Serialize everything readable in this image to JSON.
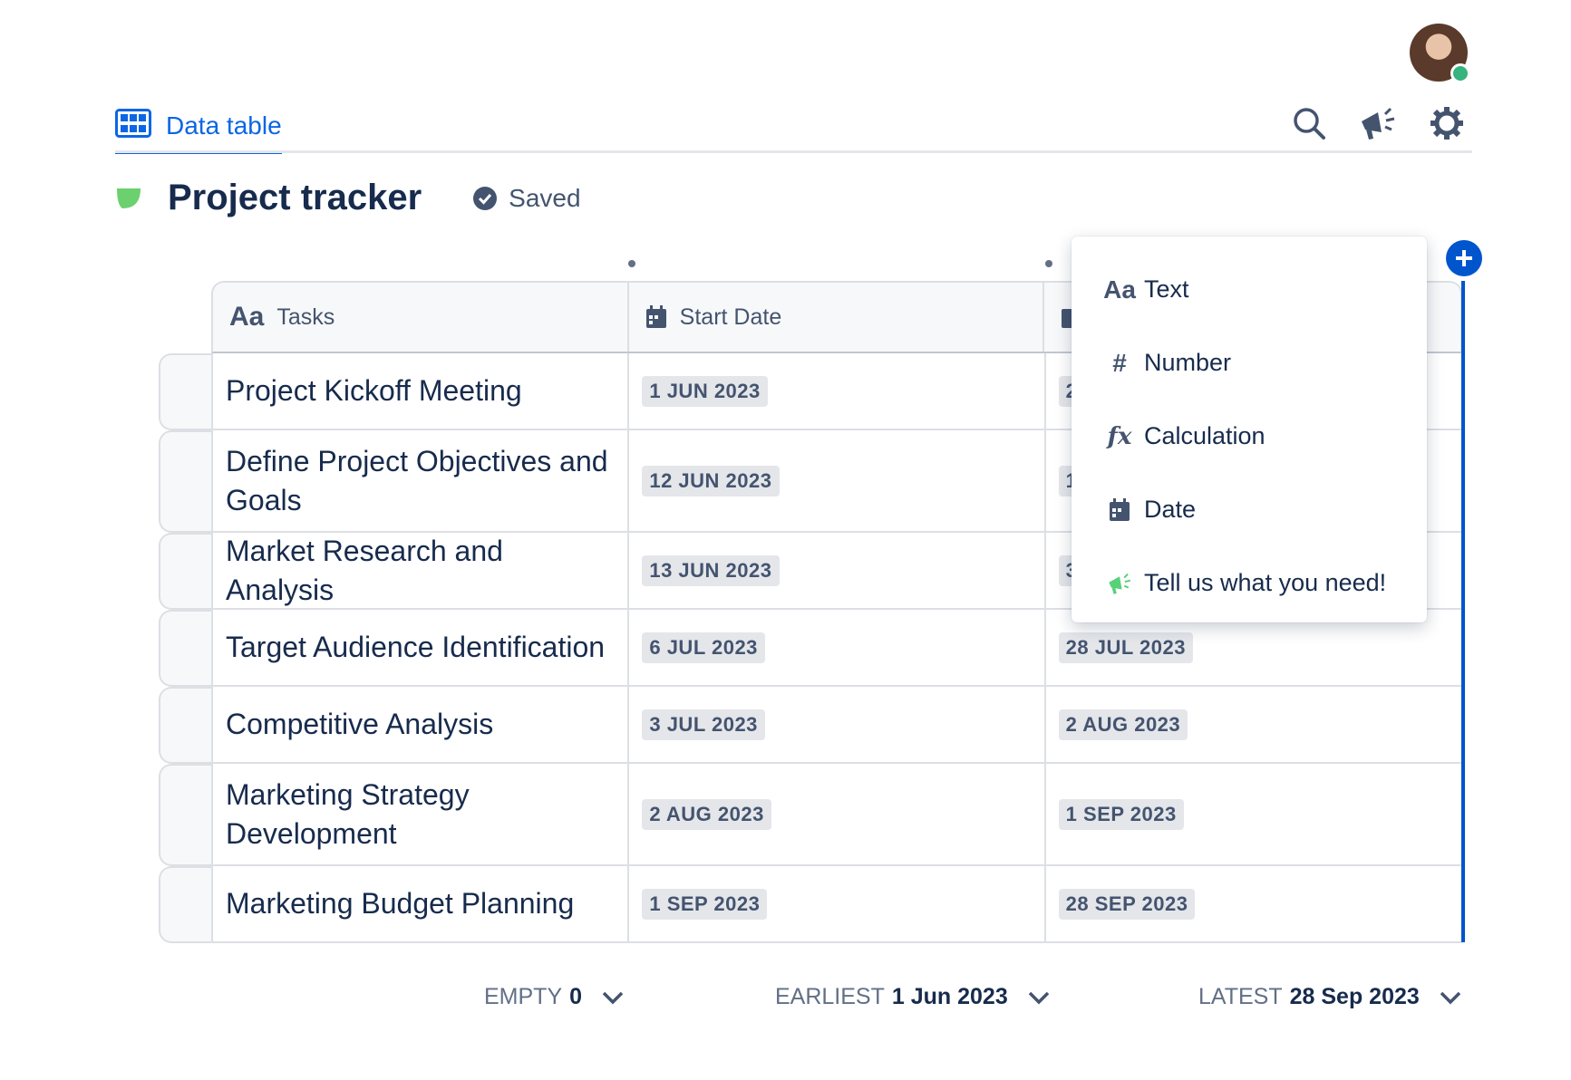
{
  "tab": {
    "label": "Data table"
  },
  "page": {
    "title": "Project tracker",
    "status": "Saved"
  },
  "columns": [
    {
      "label": "Tasks",
      "icon": "Aa"
    },
    {
      "label": "Start Date",
      "icon": "calendar-icon"
    },
    {
      "label": "",
      "icon": "calendar-icon"
    }
  ],
  "rows": [
    {
      "task": "Project Kickoff Meeting",
      "start": "1 JUN 2023",
      "end": "2"
    },
    {
      "task": "Define Project Objectives and Goals",
      "start": "12 JUN 2023",
      "end": "1"
    },
    {
      "task": "Market Research and Analysis",
      "start": "13 JUN 2023",
      "end": "3"
    },
    {
      "task": "Target Audience Identification",
      "start": "6 JUL 2023",
      "end": "28 JUL 2023"
    },
    {
      "task": "Competitive Analysis",
      "start": "3 JUL 2023",
      "end": "2 AUG 2023"
    },
    {
      "task": "Marketing Strategy Development",
      "start": "2 AUG 2023",
      "end": "1 SEP 2023"
    },
    {
      "task": "Marketing Budget Planning",
      "start": "1 SEP 2023",
      "end": "28 SEP 2023"
    }
  ],
  "menu": {
    "items": [
      {
        "icon": "Aa",
        "label": "Text"
      },
      {
        "icon": "#",
        "label": "Number"
      },
      {
        "icon": "fx",
        "label": "Calculation"
      },
      {
        "icon": "calendar-icon",
        "label": "Date"
      },
      {
        "icon": "megaphone-icon",
        "label": "Tell us what you need!"
      }
    ]
  },
  "footer": {
    "empty_label": "EMPTY",
    "empty_value": "0",
    "earliest_label": "EARLIEST",
    "earliest_value": "1 Jun 2023",
    "latest_label": "LATEST",
    "latest_value": "28 Sep 2023"
  },
  "colors": {
    "accent": "#0c66e4",
    "edge": "#0055cc",
    "status_online": "#36b37e",
    "leaf": "#6bd16f"
  }
}
